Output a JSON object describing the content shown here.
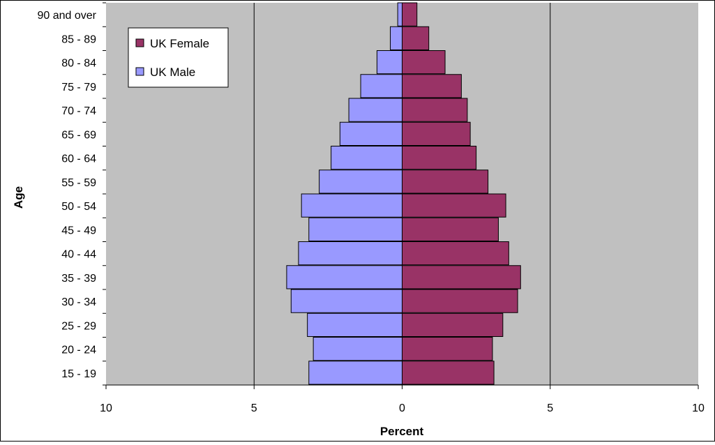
{
  "chart_data": {
    "type": "bar",
    "orientation": "horizontal",
    "categories": [
      "15 - 19",
      "20 - 24",
      "25 - 29",
      "30 - 34",
      "35 - 39",
      "40 - 44",
      "45 - 49",
      "50 - 54",
      "55 - 59",
      "60 - 64",
      "65 - 69",
      "70 - 74",
      "75 - 79",
      "80 - 84",
      "85 - 89",
      "90 and over"
    ],
    "series": [
      {
        "name": "UK Female",
        "color": "#993366",
        "values": [
          3.1,
          3.05,
          3.4,
          3.9,
          4.0,
          3.6,
          3.25,
          3.5,
          2.9,
          2.5,
          2.3,
          2.2,
          2.0,
          1.45,
          0.9,
          0.5
        ]
      },
      {
        "name": "UK Male",
        "color": "#9999ff",
        "values": [
          3.15,
          3.0,
          3.2,
          3.75,
          3.9,
          3.5,
          3.15,
          3.4,
          2.8,
          2.4,
          2.1,
          1.8,
          1.4,
          0.85,
          0.4,
          0.15
        ]
      }
    ],
    "xlim": [
      -10,
      10
    ],
    "x_ticks": [
      -10,
      -5,
      0,
      5,
      10
    ],
    "x_tick_labels": [
      "10",
      "5",
      "0",
      "5",
      "10"
    ],
    "xlabel": "Percent",
    "ylabel": "Age",
    "grid": "vertical",
    "legend": "top-left",
    "plot_background": "#c0c0c0"
  }
}
